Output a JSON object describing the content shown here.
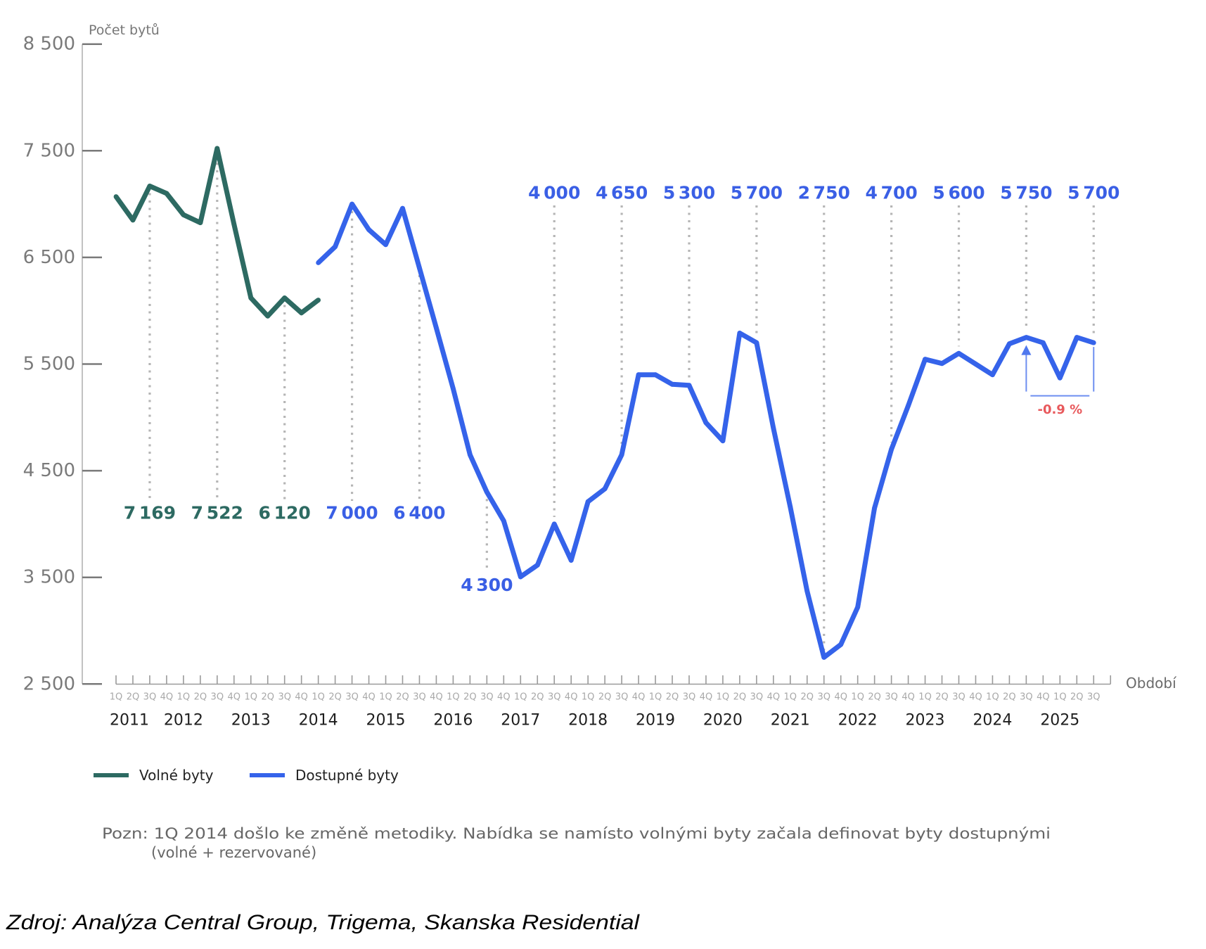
{
  "chart_data": {
    "type": "line",
    "title": "",
    "ylabel": "Počet bytů",
    "xlabel": "Období",
    "ylim": [
      2500,
      8500
    ],
    "grid": false,
    "yticks": [
      2500,
      3500,
      4500,
      5500,
      6500,
      7500,
      8500
    ],
    "ytick_labels": [
      "2 500",
      "3 500",
      "4 500",
      "5 500",
      "6 500",
      "7 500",
      "8 500"
    ],
    "x": [
      "2011 1Q",
      "2011 2Q",
      "2011 3Q",
      "2011 4Q",
      "2012 1Q",
      "2012 2Q",
      "2012 3Q",
      "2012 4Q",
      "2013 1Q",
      "2013 2Q",
      "2013 3Q",
      "2013 4Q",
      "2014 1Q",
      "2014 2Q",
      "2014 3Q",
      "2014 4Q",
      "2015 1Q",
      "2015 2Q",
      "2015 3Q",
      "2015 4Q",
      "2016 1Q",
      "2016 2Q",
      "2016 3Q",
      "2016 4Q",
      "2017 1Q",
      "2017 2Q",
      "2017 3Q",
      "2017 4Q",
      "2018 1Q",
      "2018 2Q",
      "2018 3Q",
      "2018 4Q",
      "2019 1Q",
      "2019 2Q",
      "2019 3Q",
      "2019 4Q",
      "2020 1Q",
      "2020 2Q",
      "2020 3Q",
      "2020 4Q",
      "2021 1Q",
      "2021 2Q",
      "2021 3Q",
      "2021 4Q",
      "2022 1Q",
      "2022 2Q",
      "2022 3Q",
      "2022 4Q",
      "2023 1Q",
      "2023 2Q",
      "2023 3Q",
      "2023 4Q",
      "2024 1Q",
      "2024 2Q",
      "2024 3Q",
      "2024 4Q",
      "2025 1Q",
      "2025 2Q",
      "2025 3Q"
    ],
    "quarter_tick_labels": [
      "1Q",
      "2Q",
      "3Q",
      "4Q",
      "1Q",
      "2Q",
      "3Q",
      "4Q",
      "1Q",
      "2Q",
      "3Q",
      "4Q",
      "1Q",
      "2Q",
      "3Q",
      "4Q",
      "1Q",
      "2Q",
      "3Q",
      "4Q",
      "1Q",
      "2Q",
      "3Q",
      "4Q",
      "1Q",
      "2Q",
      "3Q",
      "4Q",
      "1Q",
      "2Q",
      "3Q",
      "4Q",
      "1Q",
      "2Q",
      "3Q",
      "4Q",
      "1Q",
      "2Q",
      "3Q",
      "4Q",
      "1Q",
      "2Q",
      "3Q",
      "4Q",
      "1Q",
      "2Q",
      "3Q",
      "4Q",
      "1Q",
      "2Q",
      "3Q",
      "4Q",
      "1Q",
      "2Q",
      "3Q",
      "4Q",
      "1Q",
      "2Q",
      "3Q"
    ],
    "year_labels": [
      {
        "label": "2011",
        "quarter_index": 0
      },
      {
        "label": "2012",
        "quarter_index": 4
      },
      {
        "label": "2013",
        "quarter_index": 8
      },
      {
        "label": "2014",
        "quarter_index": 12
      },
      {
        "label": "2015",
        "quarter_index": 16
      },
      {
        "label": "2016",
        "quarter_index": 20
      },
      {
        "label": "2017",
        "quarter_index": 24
      },
      {
        "label": "2018",
        "quarter_index": 28
      },
      {
        "label": "2019",
        "quarter_index": 32
      },
      {
        "label": "2020",
        "quarter_index": 36
      },
      {
        "label": "2021",
        "quarter_index": 40
      },
      {
        "label": "2022",
        "quarter_index": 44
      },
      {
        "label": "2023",
        "quarter_index": 48
      },
      {
        "label": "2024",
        "quarter_index": 52
      },
      {
        "label": "2025",
        "quarter_index": 56
      }
    ],
    "series": [
      {
        "name": "Volné byty",
        "color": "#2d6a62",
        "label_color": "#2d6a62",
        "start_index": 0,
        "values": [
          7070,
          6850,
          7169,
          7100,
          6900,
          6825,
          7522,
          6810,
          6120,
          5950,
          6120,
          5980,
          6100
        ]
      },
      {
        "name": "Dostupné byty",
        "color": "#3563ea",
        "label_color": "#3a5fe5",
        "start_index": 12,
        "values": [
          6450,
          6600,
          7000,
          6760,
          6620,
          6960,
          6400,
          5840,
          5270,
          4650,
          4300,
          4030,
          3505,
          3615,
          4000,
          3660,
          4210,
          4330,
          4650,
          5400,
          5400,
          5310,
          5300,
          4950,
          4780,
          5790,
          5700,
          4900,
          4160,
          3370,
          2750,
          2870,
          3220,
          4150,
          4700,
          5110,
          5545,
          5505,
          5600,
          5500,
          5400,
          5690,
          5750,
          5700,
          5370,
          5750,
          5700
        ]
      }
    ],
    "annotations": [
      {
        "index": 2,
        "series": 0,
        "label": "7 169",
        "placement": "below"
      },
      {
        "index": 6,
        "series": 0,
        "label": "7 522",
        "placement": "below"
      },
      {
        "index": 10,
        "series": 0,
        "label": "6 120",
        "placement": "below"
      },
      {
        "index": 14,
        "series": 1,
        "label": "7 000",
        "placement": "below"
      },
      {
        "index": 18,
        "series": 1,
        "label": "6 400",
        "placement": "below"
      },
      {
        "index": 22,
        "series": 1,
        "label": "4 300",
        "placement": "below-line"
      },
      {
        "index": 26,
        "series": 1,
        "label": "4 000",
        "placement": "above"
      },
      {
        "index": 30,
        "series": 1,
        "label": "4 650",
        "placement": "above"
      },
      {
        "index": 34,
        "series": 1,
        "label": "5 300",
        "placement": "above"
      },
      {
        "index": 38,
        "series": 1,
        "label": "5 700",
        "placement": "above"
      },
      {
        "index": 42,
        "series": 1,
        "label": "2 750",
        "placement": "above"
      },
      {
        "index": 46,
        "series": 1,
        "label": "4 700",
        "placement": "above"
      },
      {
        "index": 50,
        "series": 1,
        "label": "5 600",
        "placement": "above"
      },
      {
        "index": 54,
        "series": 1,
        "label": "5 750",
        "placement": "above"
      },
      {
        "index": 58,
        "series": 1,
        "label": "5 700",
        "placement": "above"
      }
    ],
    "change_annotation": {
      "from_index": 54,
      "to_index": 58,
      "series": 1,
      "label": "-0.9 %",
      "label_color": "#e8595c"
    },
    "legend": {
      "placement": "bottom-left",
      "items": [
        {
          "label": "Volné byty",
          "color": "#2d6a62"
        },
        {
          "label": "Dostupné byty",
          "color": "#3563ea"
        }
      ]
    }
  },
  "note": {
    "line1": "Pozn: 1Q 2014 došlo ke změně metodiky. Nabídka se namísto volnými byty začala definovat byty dostupnými",
    "line2": "(volné + rezervované)"
  },
  "source": "Zdroj: Analýza Central Group, Trigema, Skanska Residential"
}
